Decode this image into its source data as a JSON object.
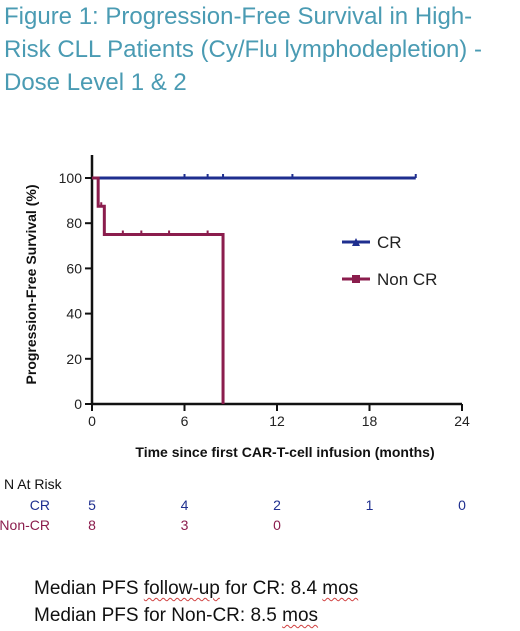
{
  "title_lines": [
    "Figure 1: Progression-Free Survival in High-",
    "Risk CLL Patients (Cy/Flu lymphodepletion)  -",
    "Dose Level 1 & 2"
  ],
  "colors": {
    "title": "#4a9bb3",
    "cr": "#1f2f8f",
    "non_cr": "#8b1d4d",
    "axis": "#111111"
  },
  "chart_data": {
    "type": "line",
    "xlabel": "Time since first CAR-T-cell infusion (months)",
    "ylabel": "Progression-Free Survival (%)",
    "xlim": [
      0,
      24
    ],
    "ylim": [
      0,
      100
    ],
    "x_ticks": [
      0,
      6,
      12,
      18,
      24
    ],
    "y_ticks": [
      0,
      20,
      40,
      60,
      80,
      100
    ],
    "legend_position": "right",
    "series": [
      {
        "name": "CR",
        "color": "#1f2f8f",
        "marker": "triangle",
        "steps": [
          [
            0,
            100
          ],
          [
            21,
            100
          ]
        ],
        "censored": [
          6,
          7.5,
          8.5,
          13,
          21
        ]
      },
      {
        "name": "Non CR",
        "color": "#8b1d4d",
        "marker": "square",
        "steps": [
          [
            0,
            100
          ],
          [
            0.4,
            87.5
          ],
          [
            0.8,
            75
          ],
          [
            8.5,
            75
          ],
          [
            8.5,
            0
          ]
        ],
        "censored": [
          0.6,
          2,
          3.2,
          5,
          7.5
        ]
      }
    ]
  },
  "risk_table": {
    "header": "N At Risk",
    "rows": [
      {
        "label": "CR",
        "color": "#1f2f8f",
        "values": [
          "5",
          "4",
          "2",
          "1",
          "0"
        ]
      },
      {
        "label": "Non-CR",
        "color": "#8b1d4d",
        "values": [
          "8",
          "3",
          "0"
        ]
      }
    ]
  },
  "footnotes": {
    "line1_pre": "Median PFS ",
    "line1_squiggle": "follow-up",
    "line1_post": " for CR: 8.4 ",
    "line1_mos": "mos",
    "line2_pre": "Median PFS for Non-CR: 8.5 ",
    "line2_mos": "mos"
  }
}
